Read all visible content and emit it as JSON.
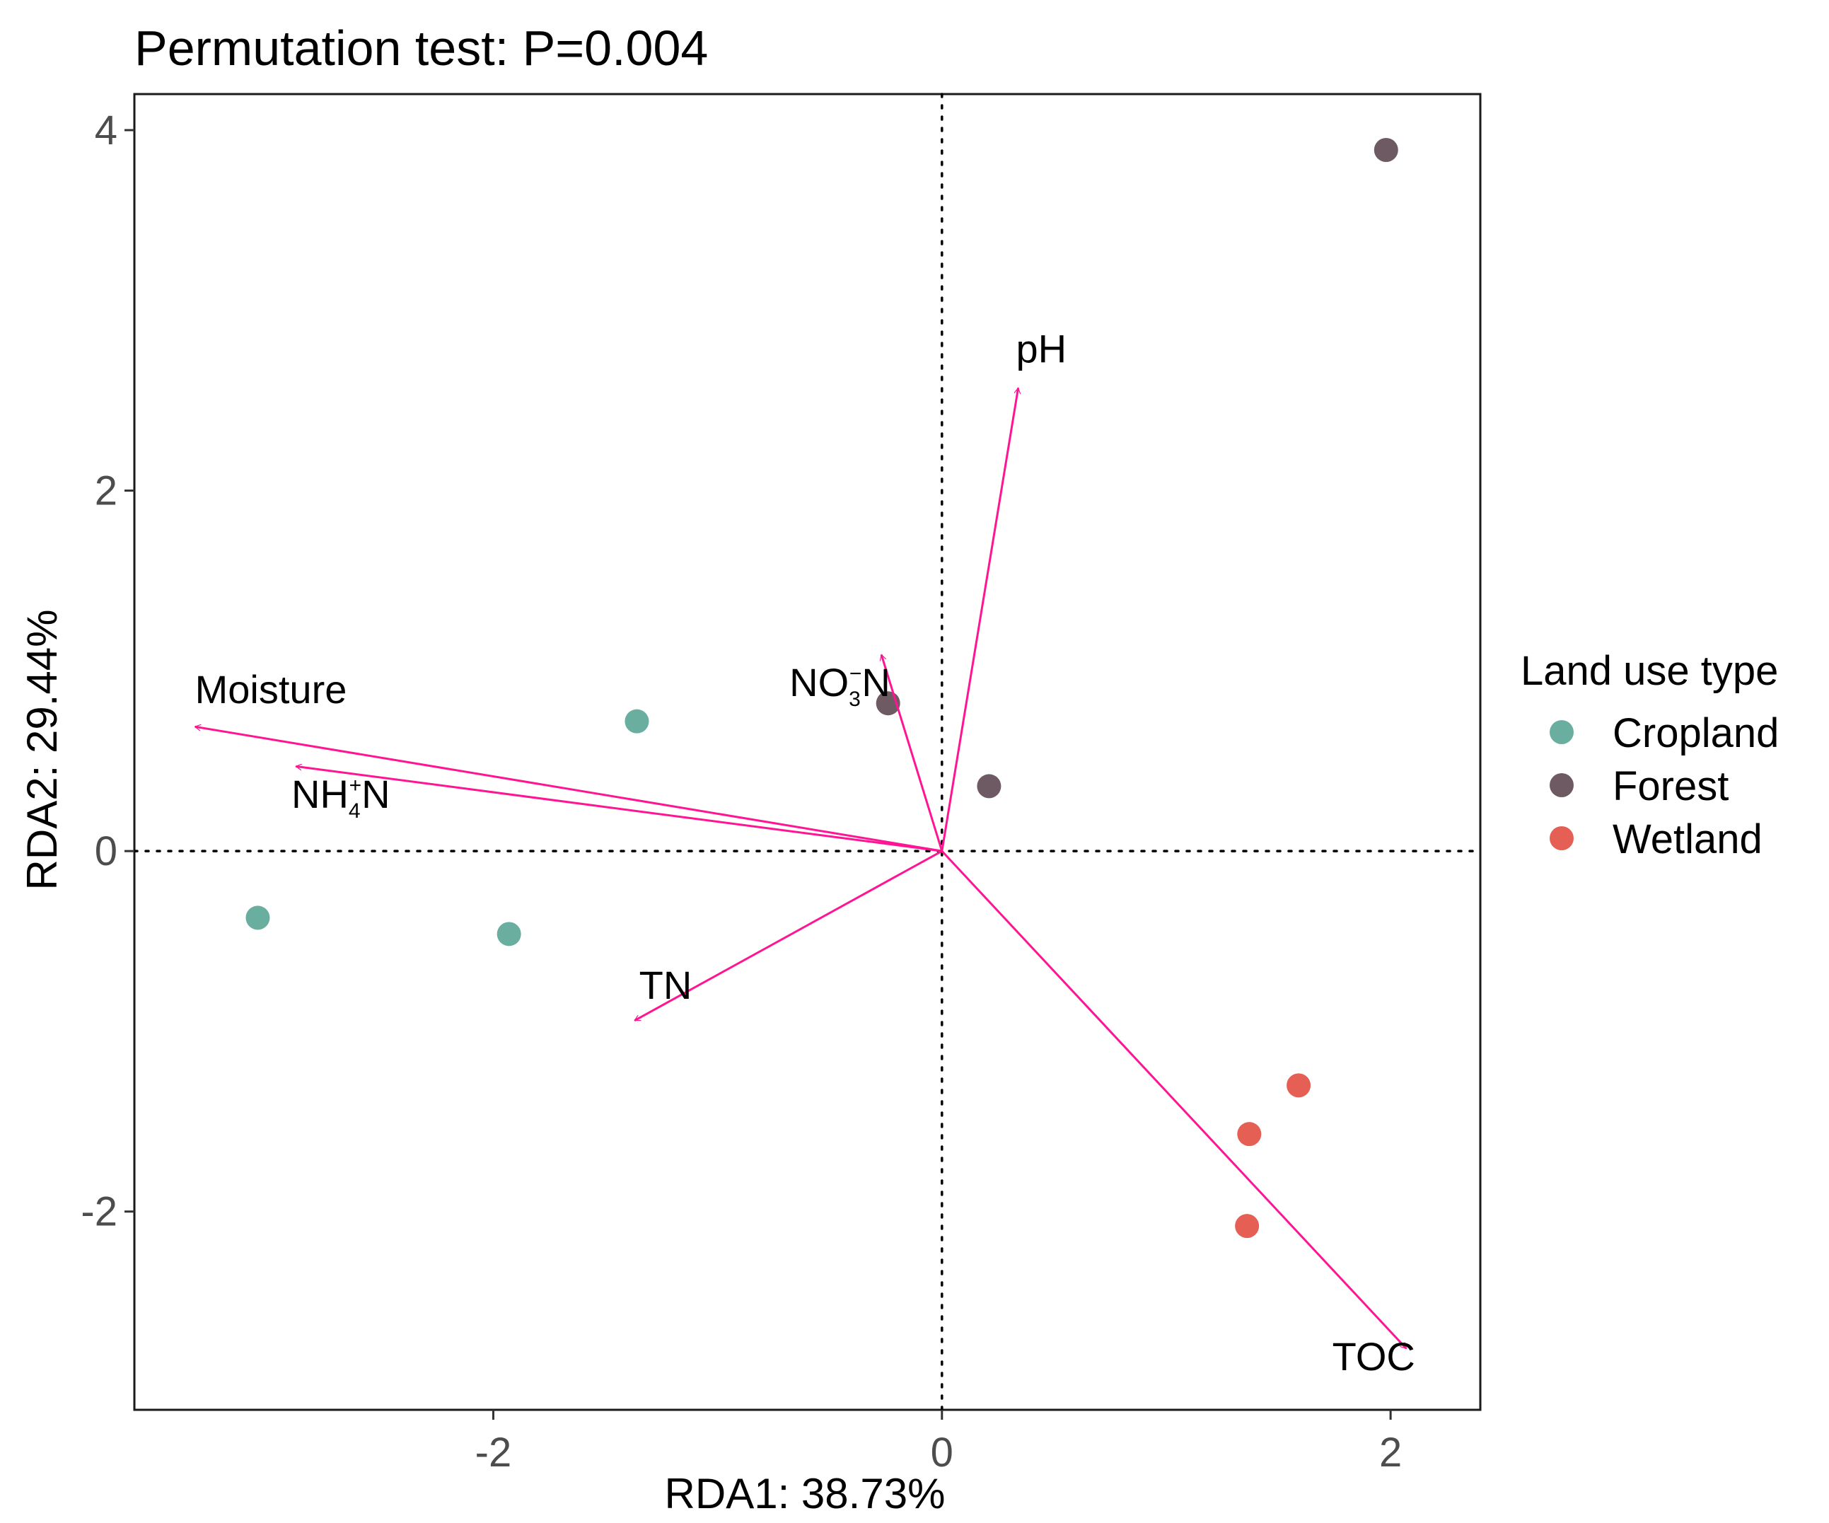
{
  "chart_data": {
    "type": "scatter",
    "title": "Permutation test: P=0.004",
    "xlabel": "RDA1: 38.73%",
    "ylabel": "RDA2: 29.44%",
    "xlim": [
      -3.6,
      2.4
    ],
    "ylim": [
      -3.1,
      4.2
    ],
    "x_ticks": [
      {
        "value": -2,
        "label": "-2"
      },
      {
        "value": 0,
        "label": "0"
      },
      {
        "value": 2,
        "label": "2"
      }
    ],
    "y_ticks": [
      {
        "value": -2,
        "label": "-2"
      },
      {
        "value": 0,
        "label": "0"
      },
      {
        "value": 2,
        "label": "2"
      },
      {
        "value": 4,
        "label": "4"
      }
    ],
    "reference_lines": {
      "x": 0,
      "y": 0,
      "style": "dotted"
    },
    "legend": {
      "title": "Land use type",
      "placement": "right"
    },
    "series": [
      {
        "name": "Cropland",
        "color": "#6aaea0",
        "points": [
          {
            "x": -3.05,
            "y": -0.37
          },
          {
            "x": -1.93,
            "y": -0.46
          },
          {
            "x": -1.36,
            "y": 0.72
          }
        ]
      },
      {
        "name": "Forest",
        "color": "#6e5a63",
        "points": [
          {
            "x": -0.24,
            "y": 0.82
          },
          {
            "x": 0.21,
            "y": 0.36
          },
          {
            "x": 1.98,
            "y": 3.89
          }
        ]
      },
      {
        "name": "Wetland",
        "color": "#e55f55",
        "points": [
          {
            "x": 1.37,
            "y": -1.57
          },
          {
            "x": 1.59,
            "y": -1.3
          },
          {
            "x": 1.36,
            "y": -2.08
          }
        ]
      }
    ],
    "vectors": {
      "color": "#ff1493",
      "items": [
        {
          "name": "Moisture",
          "main": "Moisture",
          "x": -3.33,
          "y": 0.69,
          "label_x": -3.33,
          "label_y": 0.82
        },
        {
          "name": "NH4+N",
          "main": "NH",
          "sub": "4",
          "sup": "+",
          "tail": "N",
          "x": -2.88,
          "y": 0.47,
          "label_x": -2.9,
          "label_y": 0.24
        },
        {
          "name": "NO3-N",
          "main": "NO",
          "sub": "3",
          "sup": "−",
          "tail": "N",
          "x": -0.27,
          "y": 1.09,
          "label_x": -0.68,
          "label_y": 0.86
        },
        {
          "name": "pH",
          "main": "pH",
          "x": 0.34,
          "y": 2.57,
          "label_x": 0.33,
          "label_y": 2.71
        },
        {
          "name": "TN",
          "main": "TN",
          "x": -1.37,
          "y": -0.94,
          "label_x": -1.35,
          "label_y": -0.82
        },
        {
          "name": "TOC",
          "main": "TOC",
          "x": 2.07,
          "y": -2.76,
          "label_x": 1.74,
          "label_y": -2.88
        }
      ]
    }
  }
}
